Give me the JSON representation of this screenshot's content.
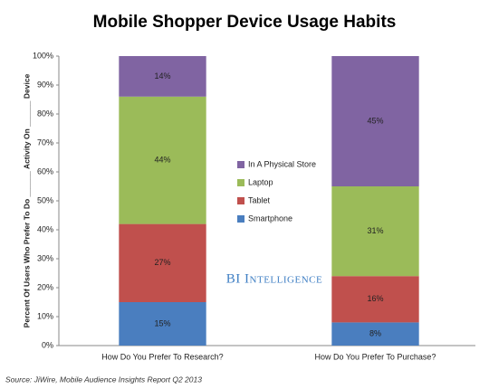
{
  "chart_data": {
    "type": "stacked_bar",
    "title": "Mobile Shopper Device Usage Habits",
    "ylabel": "Percent Of Users Who Prefer To Do ______ Activity On ______ Device",
    "categories": [
      "How Do You Prefer To Research?",
      "How Do You Prefer To Purchase?"
    ],
    "series": [
      {
        "name": "Smartphone",
        "color": "#4a7ebf",
        "values": [
          15,
          8
        ],
        "value_labels": [
          "15%",
          "8%"
        ]
      },
      {
        "name": "Tablet",
        "color": "#c0504d",
        "values": [
          27,
          16
        ],
        "value_labels": [
          "27%",
          "16%"
        ]
      },
      {
        "name": "Laptop",
        "color": "#9bbb59",
        "values": [
          44,
          31
        ],
        "value_labels": [
          "44%",
          "31%"
        ]
      },
      {
        "name": "In A Physical Store",
        "color": "#8064a2",
        "values": [
          14,
          45
        ],
        "value_labels": [
          "14%",
          "45%"
        ]
      }
    ],
    "ylim": [
      0,
      100
    ],
    "yticks": [
      {
        "value": 0,
        "label": "0%"
      },
      {
        "value": 10,
        "label": "10%"
      },
      {
        "value": 20,
        "label": "20%"
      },
      {
        "value": 30,
        "label": "30%"
      },
      {
        "value": 40,
        "label": "40%"
      },
      {
        "value": 50,
        "label": "50%"
      },
      {
        "value": 60,
        "label": "60%"
      },
      {
        "value": 70,
        "label": "70%"
      },
      {
        "value": 80,
        "label": "80%"
      },
      {
        "value": 90,
        "label": "90%"
      },
      {
        "value": 100,
        "label": "100%"
      }
    ],
    "grid": false,
    "legend": "center",
    "watermark": "BI Intelligence",
    "source": "Source: JiWire, Mobile Audience Insights Report Q2 2013"
  }
}
